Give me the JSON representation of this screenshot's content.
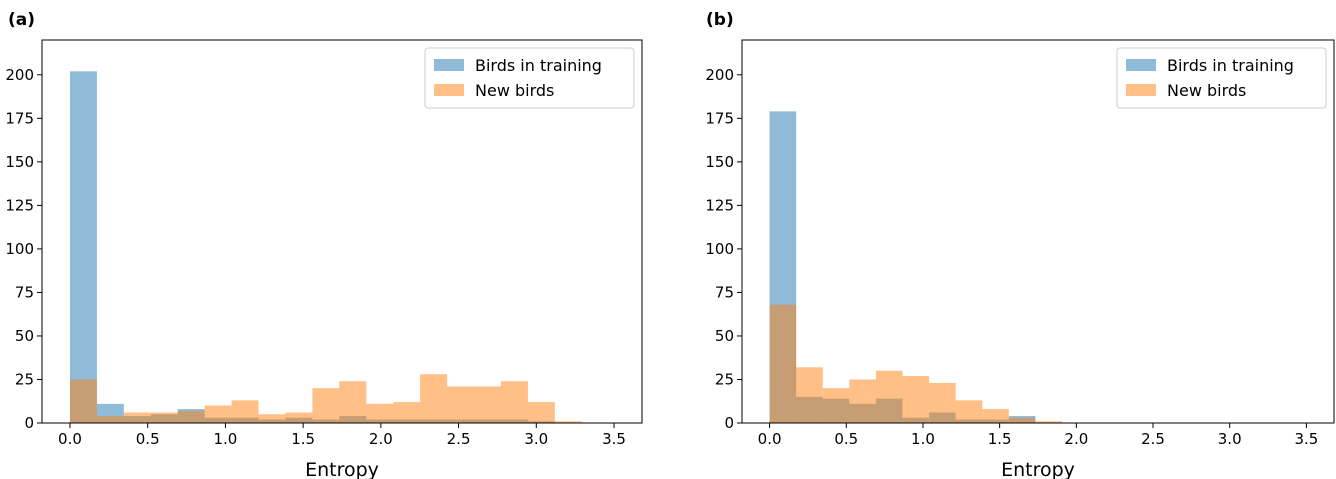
{
  "colors": {
    "training": "#1f77b4",
    "new": "#ff7f0e"
  },
  "chart_data": [
    {
      "type": "bar",
      "panel_label": "(a)",
      "xlabel": "Entropy",
      "ylabel": "",
      "xlim": [
        -0.18,
        3.68
      ],
      "ylim": [
        0,
        220
      ],
      "xticks": [
        "0.0",
        "0.5",
        "1.0",
        "1.5",
        "2.0",
        "2.5",
        "3.0",
        "3.5"
      ],
      "yticks": [
        "0",
        "25",
        "50",
        "75",
        "100",
        "125",
        "150",
        "175",
        "200"
      ],
      "legend": {
        "position": "top-right",
        "entries": [
          "Birds in training",
          "New birds"
        ]
      },
      "bin_width": 0.1733,
      "series": [
        {
          "name": "Birds in training",
          "color": "training",
          "bin_starts": [
            0,
            0.1733,
            0.3466,
            0.5199,
            0.6932,
            0.8665,
            1.0398,
            1.2131,
            1.3864,
            1.5597,
            1.733,
            1.9063,
            2.0796,
            2.2529,
            2.4262,
            2.5995,
            2.7728,
            2.9461
          ],
          "values": [
            202,
            11,
            4,
            5,
            8,
            3,
            3,
            2,
            3,
            2,
            4,
            2,
            2,
            2,
            2,
            2,
            2,
            1
          ]
        },
        {
          "name": "New birds",
          "color": "new",
          "bin_starts": [
            0,
            0.1733,
            0.3466,
            0.5199,
            0.6932,
            0.8665,
            1.0398,
            1.2131,
            1.3864,
            1.5597,
            1.733,
            1.9063,
            2.0796,
            2.2529,
            2.4262,
            2.5995,
            2.7728,
            2.9461,
            3.1194
          ],
          "values": [
            25,
            4,
            6,
            6,
            7,
            10,
            13,
            5,
            6,
            20,
            24,
            11,
            12,
            28,
            21,
            21,
            24,
            12,
            1
          ]
        }
      ]
    },
    {
      "type": "bar",
      "panel_label": "(b)",
      "xlabel": "Entropy",
      "ylabel": "",
      "xlim": [
        -0.18,
        3.68
      ],
      "ylim": [
        0,
        220
      ],
      "xticks": [
        "0.0",
        "0.5",
        "1.0",
        "1.5",
        "2.0",
        "2.5",
        "3.0",
        "3.5"
      ],
      "yticks": [
        "0",
        "25",
        "50",
        "75",
        "100",
        "125",
        "150",
        "175",
        "200"
      ],
      "legend": {
        "position": "top-right",
        "entries": [
          "Birds in training",
          "New birds"
        ]
      },
      "bin_width": 0.1733,
      "series": [
        {
          "name": "Birds in training",
          "color": "training",
          "bin_starts": [
            0,
            0.1733,
            0.3466,
            0.5199,
            0.6932,
            0.8665,
            1.0398,
            1.2131,
            1.3864,
            1.5597
          ],
          "values": [
            179,
            15,
            14,
            11,
            14,
            3,
            6,
            2,
            2,
            4
          ]
        },
        {
          "name": "New birds",
          "color": "new",
          "bin_starts": [
            0,
            0.1733,
            0.3466,
            0.5199,
            0.6932,
            0.8665,
            1.0398,
            1.2131,
            1.3864,
            1.5597,
            1.733,
            1.9063
          ],
          "values": [
            68,
            32,
            20,
            25,
            30,
            27,
            23,
            13,
            8,
            3,
            1,
            0
          ]
        }
      ]
    }
  ]
}
